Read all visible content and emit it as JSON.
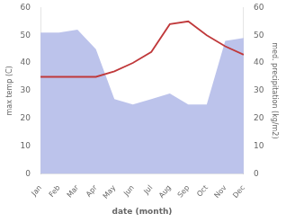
{
  "chart_data": {
    "type": "line",
    "xlabel": "date (month)",
    "ylabel": "max temp (C)",
    "y2label": "med. precipitation (kg/m2)",
    "categories": [
      "Jan",
      "Feb",
      "Mar",
      "Apr",
      "May",
      "Jun",
      "Jul",
      "Aug",
      "Sep",
      "Oct",
      "Nov",
      "Dec"
    ],
    "series": [
      {
        "type": "area",
        "axis": "y2",
        "color": "#b0b8e8",
        "values": [
          51,
          51,
          52,
          45,
          27,
          25,
          27,
          29,
          25,
          25,
          48,
          49
        ]
      },
      {
        "type": "line",
        "color": "#c0393b",
        "values": [
          35,
          35,
          35,
          35,
          37,
          40,
          44,
          54,
          55,
          50,
          46,
          43
        ]
      }
    ],
    "ylim": [
      0,
      60
    ],
    "yticks": [
      0,
      10,
      20,
      30,
      40,
      50,
      60
    ],
    "y2lim": [
      0,
      60
    ],
    "y2ticks": [
      0,
      10,
      20,
      30,
      40,
      50,
      60
    ],
    "grid": false
  }
}
